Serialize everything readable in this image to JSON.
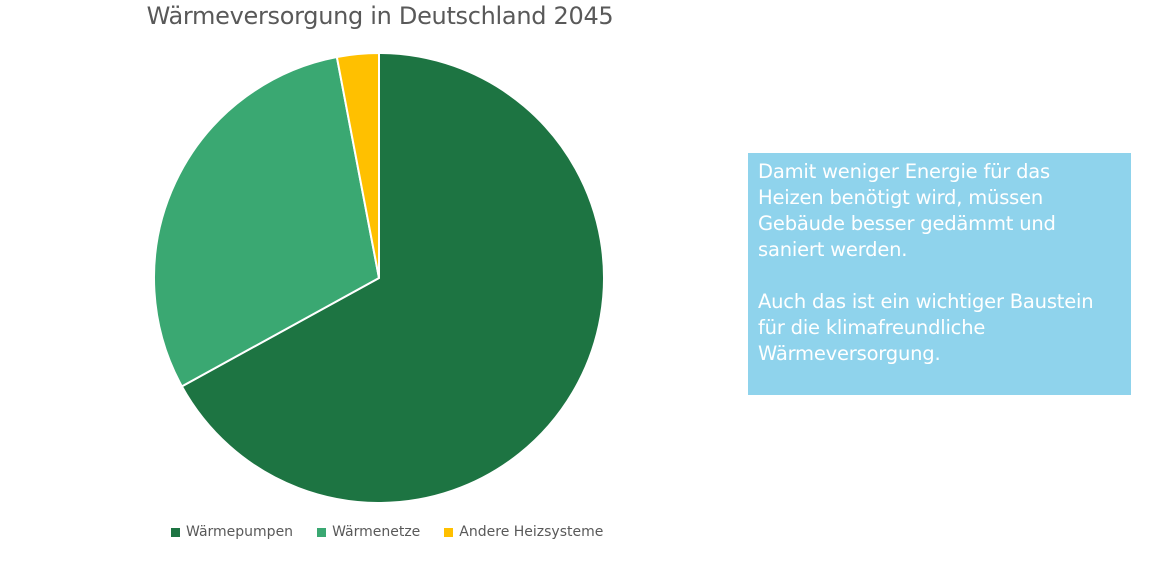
{
  "chart_data": {
    "type": "pie",
    "title": "Wärmeversorgung in Deutschland 2045",
    "categories": [
      "Wärmepumpen",
      "Wärmenetze",
      "Andere Heizsysteme"
    ],
    "values": [
      67,
      30,
      3
    ],
    "colors": [
      "#1d7442",
      "#3aa872",
      "#ffc000"
    ],
    "start_angle": "12 o'clock, clockwise",
    "legend_position": "bottom"
  },
  "legend": {
    "items": [
      {
        "label": "Wärmepumpen",
        "color": "#1d7442"
      },
      {
        "label": "Wärmenetze",
        "color": "#3aa872"
      },
      {
        "label": "Andere Heizsysteme",
        "color": "#ffc000"
      }
    ]
  },
  "info_box": {
    "paragraph_1": "Damit weniger Energie für das Heizen benötigt wird, müssen Gebäude besser gedämmt und saniert werden.",
    "paragraph_2": "Auch das ist ein wichtiger Baustein für die klimafreundliche Wärmeversorgung.",
    "background": "#8fd3ec"
  }
}
